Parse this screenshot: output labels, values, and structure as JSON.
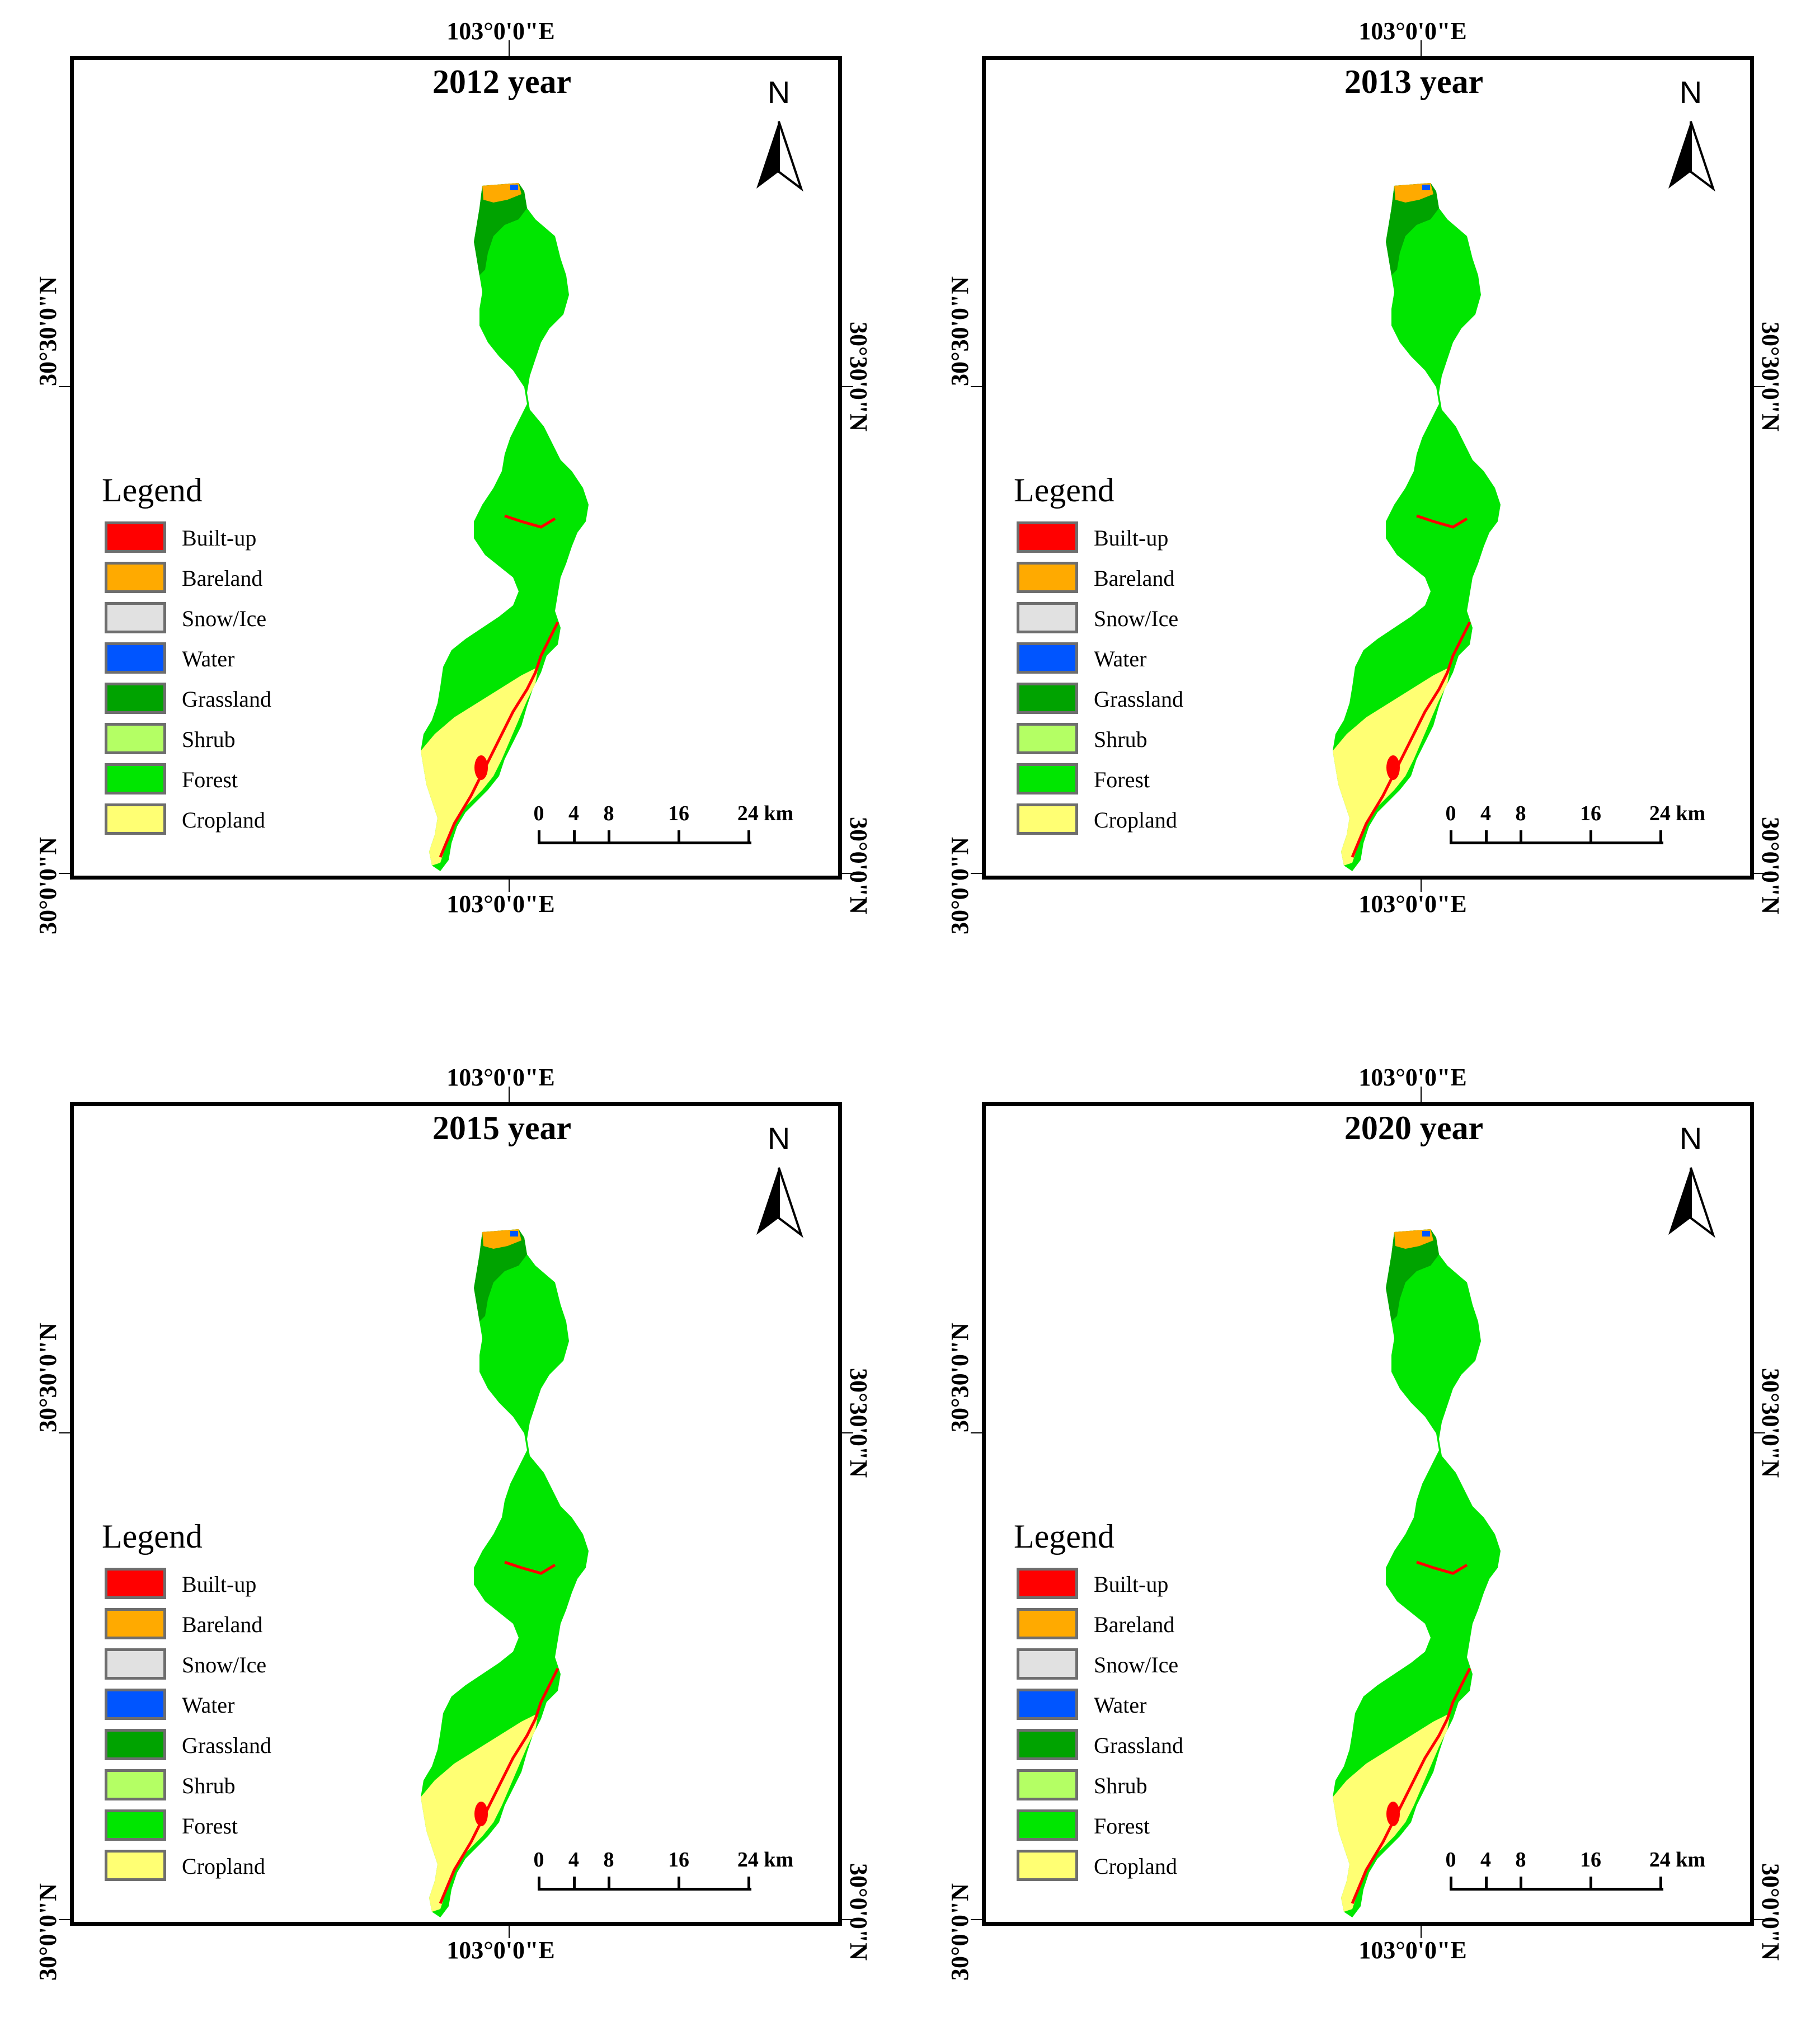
{
  "longitude_label": "103°0'0\"E",
  "latitude_upper": "30°30'0\"N",
  "latitude_lower": "30°0'0\"N",
  "north_label": "N",
  "legend_title": "Legend",
  "legend": [
    {
      "label": "Built-up",
      "color": "#ff0000"
    },
    {
      "label": "Bareland",
      "color": "#ffaa00"
    },
    {
      "label": "Snow/Ice",
      "color": "#e1e1e1"
    },
    {
      "label": "Water",
      "color": "#0055ff"
    },
    {
      "label": "Grassland",
      "color": "#00a300"
    },
    {
      "label": "Shrub",
      "color": "#b4ff64"
    },
    {
      "label": "Forest",
      "color": "#00e600"
    },
    {
      "label": "Cropland",
      "color": "#ffff73"
    }
  ],
  "scale_bar": {
    "labels": [
      "0",
      "4",
      "8",
      "16",
      "24 km"
    ],
    "km": [
      0,
      4,
      8,
      16,
      24
    ]
  },
  "panels": [
    {
      "title": "2012 year"
    },
    {
      "title": "2013 year"
    },
    {
      "title": "2015 year"
    },
    {
      "title": "2020 year"
    }
  ]
}
